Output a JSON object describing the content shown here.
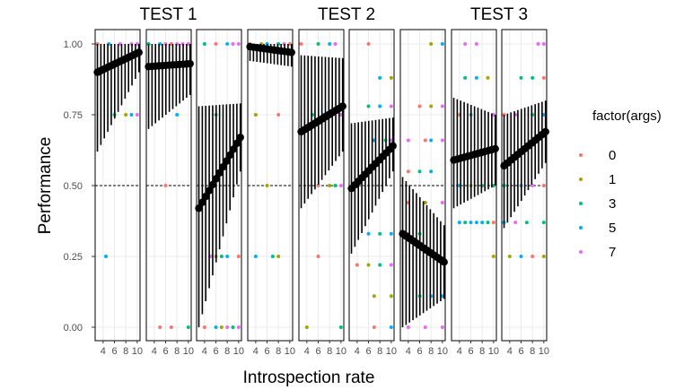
{
  "chart_data": {
    "type": "scatter",
    "ylabel": "Performance",
    "xlabel": "Introspection rate",
    "ylim": [
      0,
      1
    ],
    "y_ticks": [
      "0.00",
      "0.25",
      "0.50",
      "0.75",
      "1.00"
    ],
    "x_ticks": [
      "4",
      "6",
      "8",
      "10"
    ],
    "reference_line": 0.5,
    "grid": true,
    "legend": {
      "title": "factor(args)",
      "position": "right",
      "entries": [
        {
          "label": "0",
          "color": "#F8766D"
        },
        {
          "label": "1",
          "color": "#A3A500"
        },
        {
          "label": "3",
          "color": "#00BF7D"
        },
        {
          "label": "5",
          "color": "#00B0F6"
        },
        {
          "label": "7",
          "color": "#E76BF3"
        }
      ]
    },
    "tests": [
      {
        "label": "TEST 1",
        "panels": [
          0,
          1,
          2
        ]
      },
      {
        "label": "TEST 2",
        "panels": [
          3,
          4,
          5,
          6
        ]
      },
      {
        "label": "TEST 3",
        "panels": [
          7,
          8
        ]
      }
    ],
    "panels": [
      {
        "trend": [
          0.9,
          0.97
        ],
        "err": [
          [
            0.62,
            1.0
          ],
          [
            0.9,
            1.0
          ]
        ],
        "points": [
          [
            3,
            1.0,
            0
          ],
          [
            5,
            1.0,
            3
          ],
          [
            7,
            1.0,
            4
          ],
          [
            9,
            1.0,
            4
          ],
          [
            10,
            1.0,
            4
          ],
          [
            6,
            0.75,
            2
          ],
          [
            8,
            0.75,
            1
          ],
          [
            9,
            0.75,
            3
          ],
          [
            10,
            0.75,
            4
          ],
          [
            4.5,
            0.25,
            3
          ]
        ]
      },
      {
        "trend": [
          0.92,
          0.93
        ],
        "err": [
          [
            0.7,
            1.0
          ],
          [
            0.82,
            1.0
          ]
        ],
        "points": [
          [
            3,
            1.0,
            2
          ],
          [
            5,
            1.0,
            3
          ],
          [
            6,
            1.0,
            4
          ],
          [
            7,
            1.0,
            0
          ],
          [
            8,
            1.0,
            4
          ],
          [
            9,
            1.0,
            4
          ],
          [
            10,
            1.0,
            4
          ],
          [
            8,
            0.75,
            3
          ],
          [
            6,
            0.5,
            0
          ],
          [
            5,
            0.0,
            0
          ],
          [
            7,
            0.0,
            0
          ],
          [
            10,
            0.0,
            2
          ]
        ]
      },
      {
        "trend": [
          0.42,
          0.67
        ],
        "err": [
          [
            0.0,
            0.78
          ],
          [
            0.55,
            0.79
          ]
        ],
        "points": [
          [
            4,
            1.0,
            2
          ],
          [
            6,
            1.0,
            0
          ],
          [
            8,
            1.0,
            3
          ],
          [
            9,
            1.0,
            4
          ],
          [
            10,
            1.0,
            4
          ],
          [
            6,
            0.75,
            2
          ],
          [
            6,
            0.25,
            1
          ],
          [
            7,
            0.25,
            2
          ],
          [
            8,
            0.25,
            3
          ],
          [
            10,
            0.25,
            0
          ],
          [
            5,
            0.25,
            4
          ],
          [
            4,
            0.0,
            0
          ],
          [
            6,
            0.0,
            3
          ],
          [
            7,
            0.0,
            1
          ],
          [
            8,
            0.0,
            4
          ],
          [
            9,
            0.0,
            2
          ],
          [
            10,
            0.0,
            4
          ]
        ]
      },
      {
        "trend": [
          0.99,
          0.97
        ],
        "err": [
          [
            0.94,
            1.0
          ],
          [
            0.92,
            1.0
          ]
        ],
        "points": [
          [
            3,
            1.0,
            0
          ],
          [
            5,
            1.0,
            1
          ],
          [
            6,
            1.0,
            3
          ],
          [
            8,
            1.0,
            2
          ],
          [
            9,
            1.0,
            4
          ],
          [
            10,
            1.0,
            0
          ],
          [
            4,
            0.75,
            1
          ],
          [
            8,
            0.75,
            0
          ],
          [
            6,
            0.5,
            1
          ],
          [
            4,
            0.25,
            3
          ],
          [
            7,
            0.25,
            2
          ],
          [
            8,
            0.25,
            1
          ]
        ]
      },
      {
        "trend": [
          0.69,
          0.78
        ],
        "err": [
          [
            0.42,
            0.96
          ],
          [
            0.62,
            0.95
          ]
        ],
        "points": [
          [
            3,
            1.0,
            0
          ],
          [
            6,
            1.0,
            2
          ],
          [
            8,
            1.0,
            3
          ],
          [
            9,
            1.0,
            4
          ],
          [
            5,
            0.75,
            2
          ],
          [
            7,
            0.75,
            3
          ],
          [
            10,
            0.75,
            4
          ],
          [
            6,
            0.5,
            0
          ],
          [
            8,
            0.5,
            1
          ],
          [
            9,
            0.5,
            2
          ],
          [
            10,
            0.5,
            4
          ],
          [
            6,
            0.25,
            0
          ],
          [
            4,
            0.0,
            1
          ],
          [
            10,
            0.0,
            2
          ]
        ]
      },
      {
        "trend": [
          0.49,
          0.64
        ],
        "err": [
          [
            0.26,
            0.72
          ],
          [
            0.55,
            0.74
          ]
        ],
        "points": [
          [
            6,
            1.0,
            0
          ],
          [
            8,
            0.88,
            3
          ],
          [
            10,
            0.88,
            1
          ],
          [
            6,
            0.78,
            2
          ],
          [
            8,
            0.78,
            3
          ],
          [
            10,
            0.78,
            4
          ],
          [
            7,
            0.66,
            3
          ],
          [
            9,
            0.66,
            2
          ],
          [
            10,
            0.66,
            4
          ],
          [
            6,
            0.33,
            3
          ],
          [
            8,
            0.33,
            2
          ],
          [
            10,
            0.33,
            3
          ],
          [
            4,
            0.22,
            0
          ],
          [
            6,
            0.22,
            1
          ],
          [
            8,
            0.22,
            2
          ],
          [
            10,
            0.22,
            4
          ],
          [
            7,
            0.11,
            1
          ],
          [
            10,
            0.11,
            1
          ],
          [
            7,
            0.0,
            0
          ],
          [
            10,
            0.0,
            3
          ]
        ]
      },
      {
        "trend": [
          0.33,
          0.23
        ],
        "err": [
          [
            0.0,
            0.53
          ],
          [
            0.1,
            0.36
          ]
        ],
        "points": [
          [
            8,
            1.0,
            1
          ],
          [
            10,
            1.0,
            3
          ],
          [
            6,
            0.78,
            0
          ],
          [
            8,
            0.78,
            1
          ],
          [
            10,
            0.78,
            4
          ],
          [
            4,
            0.66,
            4
          ],
          [
            7,
            0.66,
            0
          ],
          [
            8,
            0.66,
            3
          ],
          [
            10,
            0.66,
            4
          ],
          [
            4,
            0.55,
            0
          ],
          [
            6,
            0.55,
            2
          ],
          [
            8,
            0.55,
            3
          ],
          [
            4,
            0.44,
            0
          ],
          [
            7,
            0.44,
            1
          ],
          [
            10,
            0.44,
            4
          ],
          [
            4,
            0.33,
            0
          ],
          [
            6,
            0.33,
            2
          ],
          [
            6,
            0.11,
            2
          ],
          [
            8,
            0.11,
            3
          ],
          [
            10,
            0.11,
            3
          ],
          [
            4,
            0.0,
            4
          ],
          [
            7,
            0.0,
            4
          ],
          [
            10,
            0.0,
            4
          ]
        ]
      },
      {
        "trend": [
          0.59,
          0.63
        ],
        "err": [
          [
            0.42,
            0.81
          ],
          [
            0.5,
            0.75
          ]
        ],
        "points": [
          [
            5,
            1.0,
            4
          ],
          [
            7,
            1.0,
            4
          ],
          [
            5,
            0.88,
            2
          ],
          [
            7,
            0.88,
            3
          ],
          [
            9,
            0.88,
            1
          ],
          [
            4,
            0.75,
            0
          ],
          [
            6,
            0.75,
            3
          ],
          [
            10,
            0.75,
            4
          ],
          [
            4,
            0.5,
            3
          ],
          [
            6,
            0.5,
            1
          ],
          [
            8,
            0.5,
            2
          ],
          [
            10,
            0.5,
            2
          ],
          [
            4,
            0.37,
            3
          ],
          [
            5,
            0.37,
            2
          ],
          [
            6,
            0.37,
            3
          ],
          [
            7,
            0.37,
            3
          ],
          [
            8,
            0.37,
            3
          ],
          [
            9,
            0.37,
            2
          ],
          [
            10,
            0.37,
            0
          ],
          [
            10,
            0.25,
            1
          ]
        ]
      },
      {
        "trend": [
          0.57,
          0.69
        ],
        "err": [
          [
            0.35,
            0.75
          ],
          [
            0.58,
            0.8
          ]
        ],
        "points": [
          [
            9,
            1.0,
            4
          ],
          [
            10,
            1.0,
            4
          ],
          [
            6,
            0.88,
            2
          ],
          [
            8,
            0.88,
            2
          ],
          [
            10,
            0.88,
            0
          ],
          [
            3,
            0.75,
            0
          ],
          [
            5,
            0.75,
            4
          ],
          [
            8,
            0.75,
            2
          ],
          [
            10,
            0.75,
            3
          ],
          [
            3,
            0.5,
            2
          ],
          [
            6,
            0.5,
            3
          ],
          [
            8,
            0.5,
            4
          ],
          [
            10,
            0.5,
            0
          ],
          [
            3,
            0.37,
            3
          ],
          [
            5,
            0.37,
            4
          ],
          [
            7,
            0.37,
            2
          ],
          [
            10,
            0.37,
            2
          ],
          [
            4,
            0.25,
            1
          ],
          [
            6,
            0.25,
            3
          ],
          [
            8,
            0.25,
            0
          ],
          [
            10,
            0.25,
            1
          ]
        ]
      }
    ]
  }
}
